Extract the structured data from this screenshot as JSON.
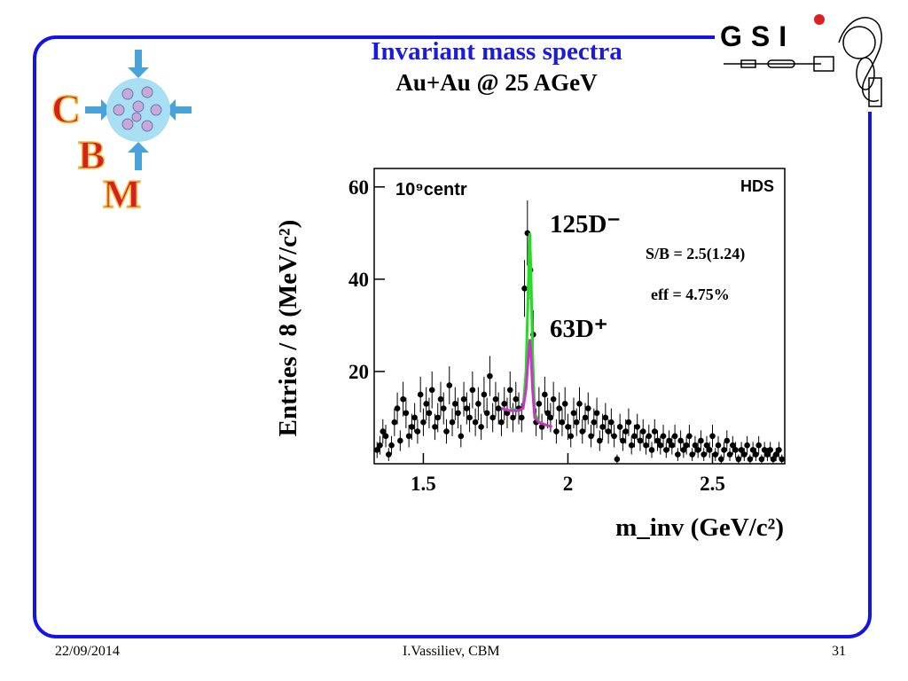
{
  "slide": {
    "title": "Invariant mass spectra",
    "subtitle": "Au+Au @ 25 AGeV",
    "footer": {
      "date": "22/09/2014",
      "author": "I.Vassiliev, CBM",
      "page": "31"
    },
    "logo_letters": [
      "C",
      "B",
      "M"
    ],
    "gsi_text": "GSI"
  },
  "chart_data": {
    "type": "scatter",
    "ylabel": "Entries / 8 (MeV/c²)",
    "xlabel": "m_inv (GeV/c²)",
    "xlim": [
      1.33,
      2.75
    ],
    "ylim": [
      0,
      64
    ],
    "xticks": [
      "1.5",
      "2",
      "2.5"
    ],
    "yticks": [
      "20",
      "40",
      "60"
    ],
    "top_left_label": "10⁹centr",
    "top_right_label": "HDS",
    "annotations": [
      "125D⁻",
      "S/B = 2.5(1.24)",
      "eff = 4.75%",
      "63D⁺"
    ],
    "series": [
      {
        "name": "data",
        "points": [
          [
            1.34,
            3
          ],
          [
            1.35,
            4
          ],
          [
            1.36,
            7
          ],
          [
            1.37,
            6
          ],
          [
            1.38,
            2
          ],
          [
            1.39,
            4
          ],
          [
            1.4,
            9
          ],
          [
            1.41,
            12
          ],
          [
            1.42,
            5
          ],
          [
            1.43,
            14
          ],
          [
            1.44,
            11
          ],
          [
            1.45,
            6
          ],
          [
            1.46,
            8
          ],
          [
            1.47,
            10
          ],
          [
            1.48,
            7
          ],
          [
            1.49,
            15
          ],
          [
            1.5,
            9
          ],
          [
            1.51,
            13
          ],
          [
            1.52,
            11
          ],
          [
            1.53,
            16
          ],
          [
            1.54,
            8
          ],
          [
            1.55,
            10
          ],
          [
            1.56,
            14
          ],
          [
            1.57,
            12
          ],
          [
            1.58,
            7
          ],
          [
            1.59,
            17
          ],
          [
            1.6,
            9
          ],
          [
            1.61,
            13
          ],
          [
            1.62,
            11
          ],
          [
            1.63,
            6
          ],
          [
            1.64,
            14
          ],
          [
            1.65,
            12
          ],
          [
            1.66,
            10
          ],
          [
            1.67,
            16
          ],
          [
            1.68,
            9
          ],
          [
            1.69,
            13
          ],
          [
            1.7,
            8
          ],
          [
            1.71,
            15
          ],
          [
            1.72,
            11
          ],
          [
            1.73,
            19
          ],
          [
            1.74,
            10
          ],
          [
            1.75,
            14
          ],
          [
            1.76,
            12
          ],
          [
            1.77,
            9
          ],
          [
            1.78,
            13
          ],
          [
            1.79,
            11
          ],
          [
            1.8,
            16
          ],
          [
            1.81,
            10
          ],
          [
            1.82,
            14
          ],
          [
            1.83,
            12
          ],
          [
            1.84,
            10
          ],
          [
            1.85,
            38
          ],
          [
            1.86,
            50
          ],
          [
            1.87,
            42
          ],
          [
            1.88,
            28
          ],
          [
            1.89,
            9
          ],
          [
            1.9,
            13
          ],
          [
            1.91,
            8
          ],
          [
            1.92,
            15
          ],
          [
            1.93,
            11
          ],
          [
            1.94,
            10
          ],
          [
            1.95,
            14
          ],
          [
            1.96,
            7
          ],
          [
            1.97,
            12
          ],
          [
            1.98,
            9
          ],
          [
            1.99,
            13
          ],
          [
            2.0,
            8
          ],
          [
            2.01,
            6
          ],
          [
            2.02,
            11
          ],
          [
            2.03,
            9
          ],
          [
            2.04,
            13
          ],
          [
            2.05,
            7
          ],
          [
            2.06,
            10
          ],
          [
            2.07,
            12
          ],
          [
            2.08,
            6
          ],
          [
            2.09,
            9
          ],
          [
            2.1,
            11
          ],
          [
            2.11,
            5
          ],
          [
            2.12,
            8
          ],
          [
            2.13,
            10
          ],
          [
            2.14,
            7
          ],
          [
            2.15,
            9
          ],
          [
            2.16,
            6
          ],
          [
            2.17,
            1
          ],
          [
            2.18,
            8
          ],
          [
            2.19,
            5
          ],
          [
            2.2,
            7
          ],
          [
            2.21,
            9
          ],
          [
            2.22,
            4
          ],
          [
            2.23,
            6
          ],
          [
            2.24,
            8
          ],
          [
            2.25,
            5
          ],
          [
            2.26,
            7
          ],
          [
            2.27,
            4
          ],
          [
            2.28,
            6
          ],
          [
            2.29,
            3
          ],
          [
            2.3,
            7
          ],
          [
            2.31,
            5
          ],
          [
            2.32,
            4
          ],
          [
            2.33,
            6
          ],
          [
            2.34,
            3
          ],
          [
            2.35,
            5
          ],
          [
            2.36,
            4
          ],
          [
            2.37,
            6
          ],
          [
            2.38,
            2
          ],
          [
            2.39,
            5
          ],
          [
            2.4,
            3
          ],
          [
            2.41,
            4
          ],
          [
            2.42,
            6
          ],
          [
            2.43,
            2
          ],
          [
            2.44,
            4
          ],
          [
            2.45,
            3
          ],
          [
            2.46,
            5
          ],
          [
            2.47,
            2
          ],
          [
            2.48,
            4
          ],
          [
            2.49,
            3
          ],
          [
            2.5,
            6
          ],
          [
            2.51,
            2
          ],
          [
            2.52,
            4
          ],
          [
            2.53,
            1
          ],
          [
            2.54,
            3
          ],
          [
            2.55,
            5
          ],
          [
            2.56,
            2
          ],
          [
            2.57,
            4
          ],
          [
            2.58,
            3
          ],
          [
            2.59,
            1
          ],
          [
            2.6,
            3
          ],
          [
            2.61,
            2
          ],
          [
            2.62,
            4
          ],
          [
            2.63,
            1
          ],
          [
            2.64,
            3
          ],
          [
            2.65,
            2
          ],
          [
            2.66,
            4
          ],
          [
            2.67,
            1
          ],
          [
            2.68,
            3
          ],
          [
            2.69,
            2
          ],
          [
            2.7,
            3
          ],
          [
            2.71,
            1
          ],
          [
            2.72,
            2
          ],
          [
            2.73,
            3
          ],
          [
            2.74,
            1
          ]
        ]
      },
      {
        "name": "fit total",
        "color": "#22dd22",
        "points": [
          [
            1.8,
            12
          ],
          [
            1.83,
            11.5
          ],
          [
            1.845,
            12
          ],
          [
            1.855,
            20
          ],
          [
            1.862,
            36
          ],
          [
            1.868,
            50
          ],
          [
            1.872,
            42
          ],
          [
            1.878,
            24
          ],
          [
            1.885,
            11
          ],
          [
            1.9,
            9
          ],
          [
            1.92,
            8.5
          ],
          [
            1.945,
            8
          ]
        ]
      },
      {
        "name": "fit signal",
        "color": "#cc33cc",
        "points": [
          [
            1.77,
            12
          ],
          [
            1.8,
            11.5
          ],
          [
            1.83,
            11.5
          ],
          [
            1.845,
            12
          ],
          [
            1.855,
            16
          ],
          [
            1.862,
            22
          ],
          [
            1.868,
            27
          ],
          [
            1.872,
            24
          ],
          [
            1.878,
            16
          ],
          [
            1.885,
            10
          ],
          [
            1.9,
            9
          ],
          [
            1.92,
            8.5
          ],
          [
            1.945,
            8
          ]
        ]
      }
    ],
    "grid": false
  }
}
